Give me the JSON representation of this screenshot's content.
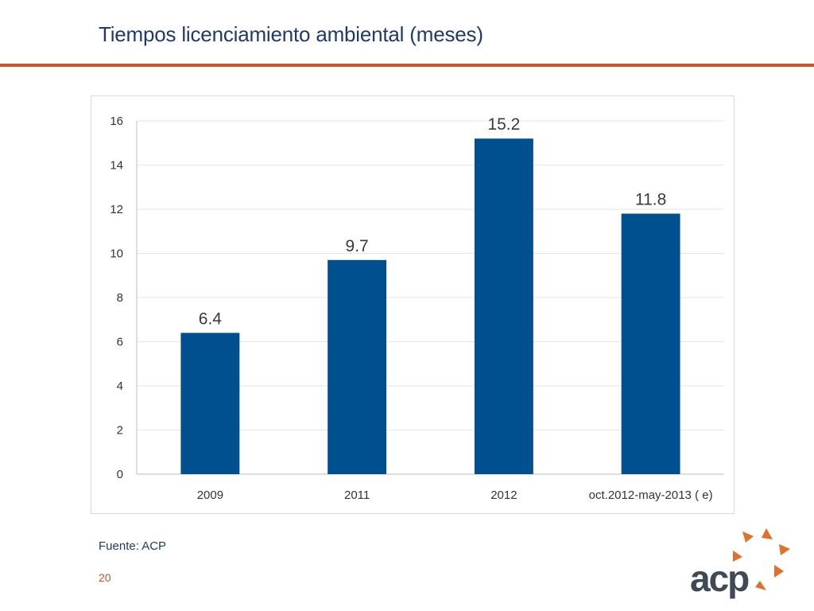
{
  "slide": {
    "title": "Tiempos licenciamiento ambiental (meses)",
    "source": "Fuente: ACP",
    "page_number": "20",
    "logo_text": "acp"
  },
  "colors": {
    "bar": "#00508f",
    "accent": "#c8542b",
    "title": "#1f3a6b",
    "logo_star": "#e0702a"
  },
  "chart_data": {
    "type": "bar",
    "title": "",
    "xlabel": "",
    "ylabel": "",
    "categories": [
      "2009",
      "2011",
      "2012",
      "oct.2012-may-2013 ( e)"
    ],
    "values": [
      6.4,
      9.7,
      15.2,
      11.8
    ],
    "data_labels": [
      "6.4",
      "9.7",
      "15.2",
      "11.8"
    ],
    "ylim": [
      0,
      16
    ],
    "yticks": [
      0,
      2,
      4,
      6,
      8,
      10,
      12,
      14,
      16
    ],
    "grid": true,
    "legend": "none"
  }
}
